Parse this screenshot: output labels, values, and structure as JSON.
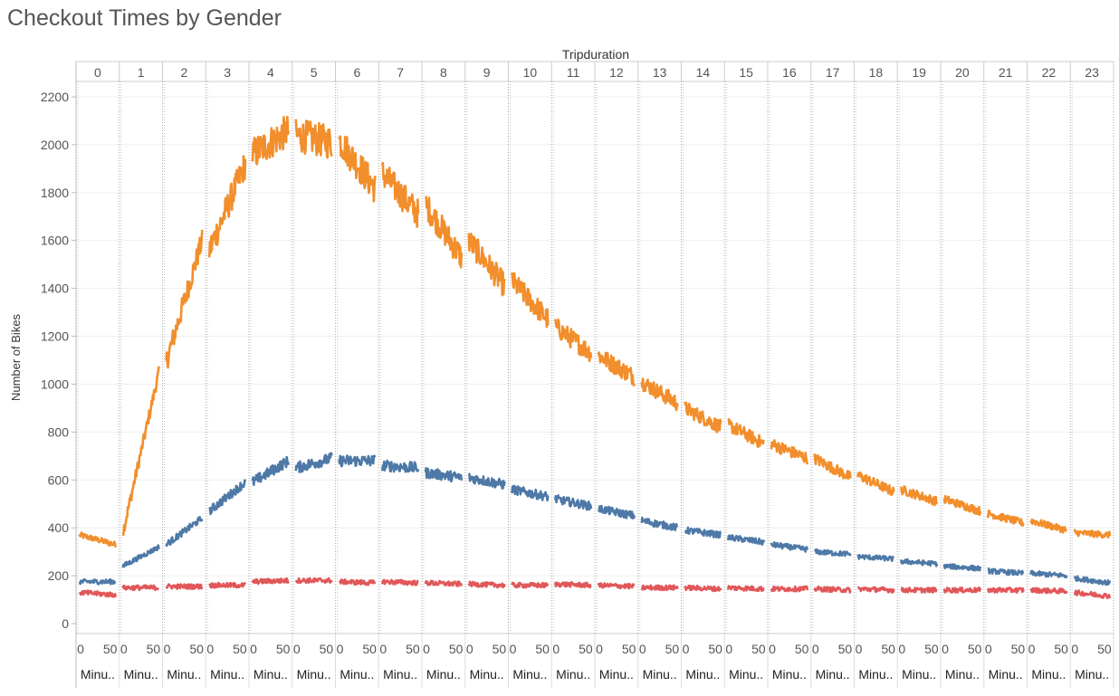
{
  "chart_data": {
    "type": "line",
    "title": "Checkout Times by Gender",
    "column_header": "Tripduration",
    "ylabel": "Number of Bikes",
    "ylim": [
      0,
      2200
    ],
    "yticks": [
      0,
      200,
      400,
      600,
      800,
      1000,
      1200,
      1400,
      1600,
      1800,
      2000,
      2200
    ],
    "panels": [
      "0",
      "1",
      "2",
      "3",
      "4",
      "5",
      "6",
      "7",
      "8",
      "9",
      "10",
      "11",
      "12",
      "13",
      "14",
      "15",
      "16",
      "17",
      "18",
      "19",
      "20",
      "21",
      "22",
      "23"
    ],
    "panel_xlim": [
      0,
      59
    ],
    "x_tick_labels": [
      "0",
      "50"
    ],
    "x_axis_label": "Minu..",
    "gridlines": true,
    "legend": "none",
    "series": [
      {
        "color": "#f28e2b",
        "hourly_start": [
          370,
          380,
          1090,
          1560,
          1960,
          2040,
          2020,
          1880,
          1750,
          1600,
          1430,
          1240,
          1120,
          1010,
          900,
          830,
          750,
          690,
          620,
          560,
          520,
          460,
          430,
          380
        ],
        "hourly_end": [
          330,
          1050,
          1600,
          1920,
          2060,
          2010,
          1820,
          1710,
          1530,
          1410,
          1270,
          1130,
          1030,
          920,
          820,
          750,
          690,
          610,
          550,
          510,
          470,
          420,
          390,
          370
        ]
      },
      {
        "color": "#4e79a7",
        "hourly_start": [
          175,
          240,
          330,
          470,
          590,
          650,
          680,
          660,
          630,
          610,
          560,
          520,
          480,
          430,
          390,
          360,
          330,
          300,
          280,
          260,
          240,
          220,
          210,
          190
        ],
        "hourly_end": [
          175,
          320,
          440,
          590,
          680,
          690,
          680,
          650,
          610,
          580,
          530,
          490,
          450,
          400,
          370,
          340,
          310,
          290,
          270,
          250,
          230,
          210,
          200,
          170
        ]
      },
      {
        "color": "#e15759",
        "hourly_start": [
          130,
          150,
          155,
          160,
          175,
          180,
          175,
          175,
          170,
          165,
          160,
          165,
          160,
          150,
          150,
          150,
          145,
          145,
          145,
          140,
          140,
          140,
          140,
          130
        ],
        "hourly_end": [
          120,
          150,
          155,
          160,
          180,
          180,
          170,
          170,
          165,
          160,
          160,
          160,
          155,
          150,
          145,
          145,
          145,
          140,
          140,
          140,
          140,
          140,
          135,
          115
        ]
      }
    ]
  }
}
